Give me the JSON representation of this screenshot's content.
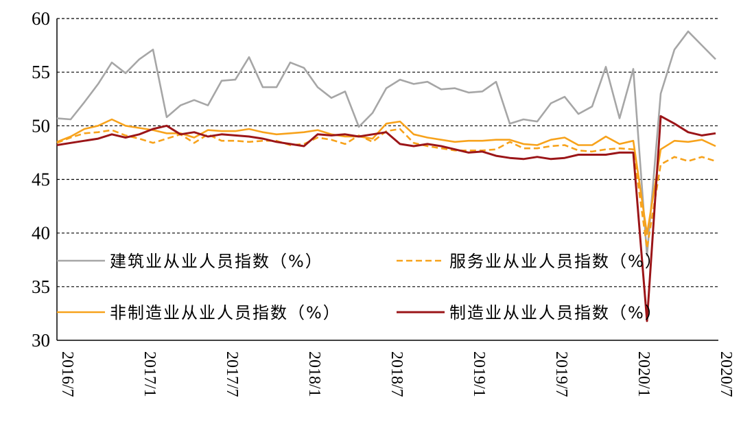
{
  "chart_data": {
    "type": "line",
    "ylim": [
      30,
      60
    ],
    "y_ticks": [
      30,
      35,
      40,
      45,
      50,
      55,
      60
    ],
    "x_tick_labels": [
      "2016/7",
      "2017/1",
      "2017/7",
      "2018/1",
      "2018/7",
      "2019/1",
      "2019/7",
      "2020/1",
      "2020/7"
    ],
    "x": [
      "2016/7",
      "2016/8",
      "2016/9",
      "2016/10",
      "2016/11",
      "2016/12",
      "2017/1",
      "2017/2",
      "2017/3",
      "2017/4",
      "2017/5",
      "2017/6",
      "2017/7",
      "2017/8",
      "2017/9",
      "2017/10",
      "2017/11",
      "2017/12",
      "2018/1",
      "2018/2",
      "2018/3",
      "2018/4",
      "2018/5",
      "2018/6",
      "2018/7",
      "2018/8",
      "2018/9",
      "2018/10",
      "2018/11",
      "2018/12",
      "2019/1",
      "2019/2",
      "2019/3",
      "2019/4",
      "2019/5",
      "2019/6",
      "2019/7",
      "2019/8",
      "2019/9",
      "2019/10",
      "2019/11",
      "2019/12",
      "2020/1",
      "2020/2",
      "2020/3",
      "2020/4",
      "2020/5",
      "2020/6",
      "2020/7"
    ],
    "grid": "horizontal dashed",
    "legend": "inside, two columns",
    "series": [
      {
        "name": "建筑业从业人员指数（%）",
        "color": "#a6a6a6",
        "style": "solid",
        "values": [
          50.7,
          50.6,
          52.2,
          53.9,
          55.9,
          54.9,
          56.2,
          57.1,
          50.8,
          51.9,
          52.4,
          51.9,
          54.2,
          54.3,
          56.4,
          53.6,
          53.6,
          55.9,
          55.4,
          53.6,
          52.6,
          53.2,
          49.9,
          51.2,
          53.5,
          54.3,
          53.9,
          54.1,
          53.4,
          53.5,
          53.1,
          53.2,
          54.1,
          50.2,
          50.6,
          50.4,
          52.1,
          52.7,
          51.1,
          51.8,
          55.5,
          50.7,
          55.3,
          37.9,
          53.0,
          57.1,
          58.8,
          57.5,
          56.2
        ]
      },
      {
        "name": "服务业从业人员指数（%）",
        "color": "#f7a21b",
        "style": "dashed",
        "values": [
          48.4,
          48.9,
          49.3,
          49.4,
          49.6,
          49.1,
          48.8,
          48.4,
          48.8,
          49.2,
          48.4,
          49.2,
          48.6,
          48.6,
          48.5,
          48.6,
          48.6,
          48.2,
          48.3,
          48.9,
          48.7,
          48.3,
          49.1,
          48.5,
          49.5,
          49.7,
          48.4,
          48.1,
          47.9,
          47.7,
          47.7,
          47.7,
          47.8,
          48.5,
          47.9,
          47.9,
          48.1,
          48.2,
          47.7,
          47.6,
          47.8,
          47.9,
          47.8,
          38.6,
          46.4,
          47.1,
          46.7,
          47.1,
          46.7
        ]
      },
      {
        "name": "非制造业从业人员指数（%）",
        "color": "#f7a21b",
        "style": "solid",
        "values": [
          48.5,
          49.0,
          49.7,
          50.0,
          50.6,
          50.0,
          49.8,
          49.6,
          49.3,
          49.3,
          48.9,
          49.6,
          49.5,
          49.5,
          49.7,
          49.4,
          49.2,
          49.3,
          49.4,
          49.6,
          49.2,
          49.0,
          49.0,
          48.8,
          50.2,
          50.4,
          49.2,
          48.9,
          48.7,
          48.5,
          48.6,
          48.6,
          48.7,
          48.7,
          48.3,
          48.2,
          48.7,
          48.9,
          48.2,
          48.2,
          49.0,
          48.3,
          48.6,
          39.9,
          47.8,
          48.6,
          48.5,
          48.7,
          48.1
        ]
      },
      {
        "name": "制造业从业人员指数（%）",
        "color": "#9b1518",
        "style": "solid",
        "values": [
          48.2,
          48.4,
          48.6,
          48.8,
          49.2,
          48.9,
          49.2,
          49.7,
          50.0,
          49.2,
          49.4,
          49.0,
          49.2,
          49.1,
          49.0,
          48.8,
          48.5,
          48.3,
          48.1,
          49.2,
          49.1,
          49.2,
          49.0,
          49.2,
          49.4,
          48.3,
          48.1,
          48.3,
          48.1,
          47.8,
          47.5,
          47.6,
          47.2,
          47.0,
          46.9,
          47.1,
          46.9,
          47.0,
          47.3,
          47.3,
          47.3,
          47.5,
          47.5,
          31.8,
          50.9,
          50.2,
          49.4,
          49.1,
          49.3
        ]
      }
    ]
  }
}
